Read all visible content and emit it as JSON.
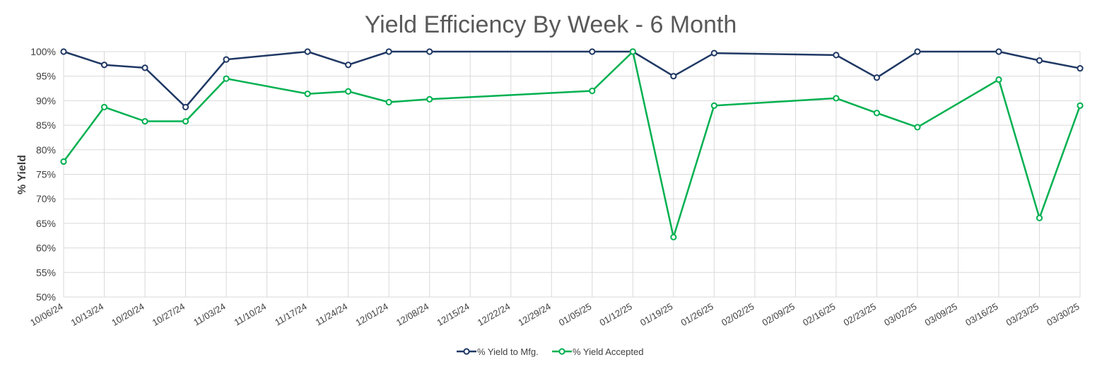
{
  "chart_data": {
    "type": "line",
    "title": "Yield Efficiency By Week - 6 Month",
    "xlabel": "",
    "ylabel": "% Yield",
    "ylim": [
      50,
      100
    ],
    "y_ticks": [
      50,
      55,
      60,
      65,
      70,
      75,
      80,
      85,
      90,
      95,
      100
    ],
    "y_tick_suffix": "%",
    "grid": true,
    "legend_position": "bottom-center",
    "categories": [
      "10/06/24",
      "10/13/24",
      "10/20/24",
      "10/27/24",
      "11/03/24",
      "11/10/24",
      "11/17/24",
      "11/24/24",
      "12/01/24",
      "12/08/24",
      "12/15/24",
      "12/22/24",
      "12/29/24",
      "01/05/25",
      "01/12/25",
      "01/19/25",
      "01/26/25",
      "02/02/25",
      "02/09/25",
      "02/16/25",
      "02/23/25",
      "03/02/25",
      "03/09/25",
      "03/16/25",
      "03/23/25",
      "03/30/25"
    ],
    "series": [
      {
        "name": "% Yield to Mfg.",
        "color": "#1f3864",
        "values": [
          100,
          97.3,
          96.7,
          88.7,
          98.4,
          null,
          100,
          97.3,
          100,
          100,
          null,
          null,
          null,
          100,
          100,
          95,
          99.7,
          null,
          null,
          99.3,
          94.7,
          100,
          null,
          100,
          98.2,
          96.6
        ]
      },
      {
        "name": "% Yield Accepted",
        "color": "#00b050",
        "values": [
          77.6,
          88.7,
          85.8,
          85.8,
          94.5,
          null,
          91.4,
          91.9,
          89.7,
          90.3,
          null,
          null,
          null,
          92,
          100,
          62.2,
          89,
          null,
          null,
          90.5,
          87.5,
          84.6,
          null,
          94.3,
          66.1,
          89
        ]
      }
    ]
  }
}
